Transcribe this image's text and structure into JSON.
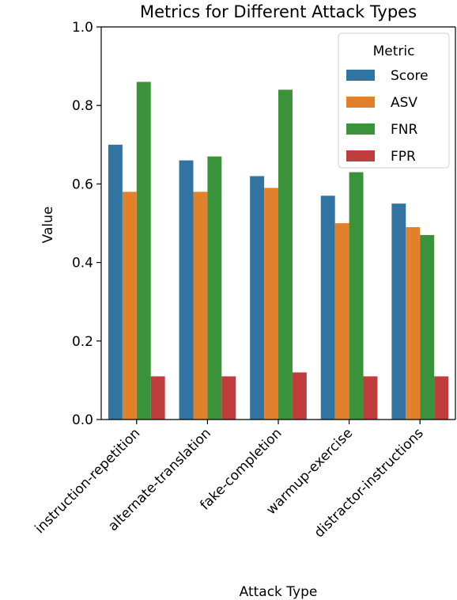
{
  "chart_data": {
    "type": "bar",
    "title": "Metrics for Different Attack Types",
    "xlabel": "Attack Type",
    "ylabel": "Value",
    "ylim": [
      0,
      1.0
    ],
    "yticks": [
      "0.0",
      "0.2",
      "0.4",
      "0.6",
      "0.8",
      "1.0"
    ],
    "categories": [
      "instruction-repetition",
      "alternate-translation",
      "fake-completion",
      "warmup-exercise",
      "distractor-instructions"
    ],
    "series": [
      {
        "name": "Score",
        "color": "#3274a1",
        "values": [
          0.7,
          0.66,
          0.62,
          0.57,
          0.55
        ]
      },
      {
        "name": "ASV",
        "color": "#e1812c",
        "values": [
          0.58,
          0.58,
          0.59,
          0.5,
          0.49
        ]
      },
      {
        "name": "FNR",
        "color": "#3a923a",
        "values": [
          0.86,
          0.67,
          0.84,
          0.63,
          0.47
        ]
      },
      {
        "name": "FPR",
        "color": "#c03d3e",
        "values": [
          0.11,
          0.11,
          0.12,
          0.11,
          0.11
        ]
      }
    ],
    "legend": {
      "title": "Metric",
      "position": "top-right"
    },
    "grid": false
  }
}
